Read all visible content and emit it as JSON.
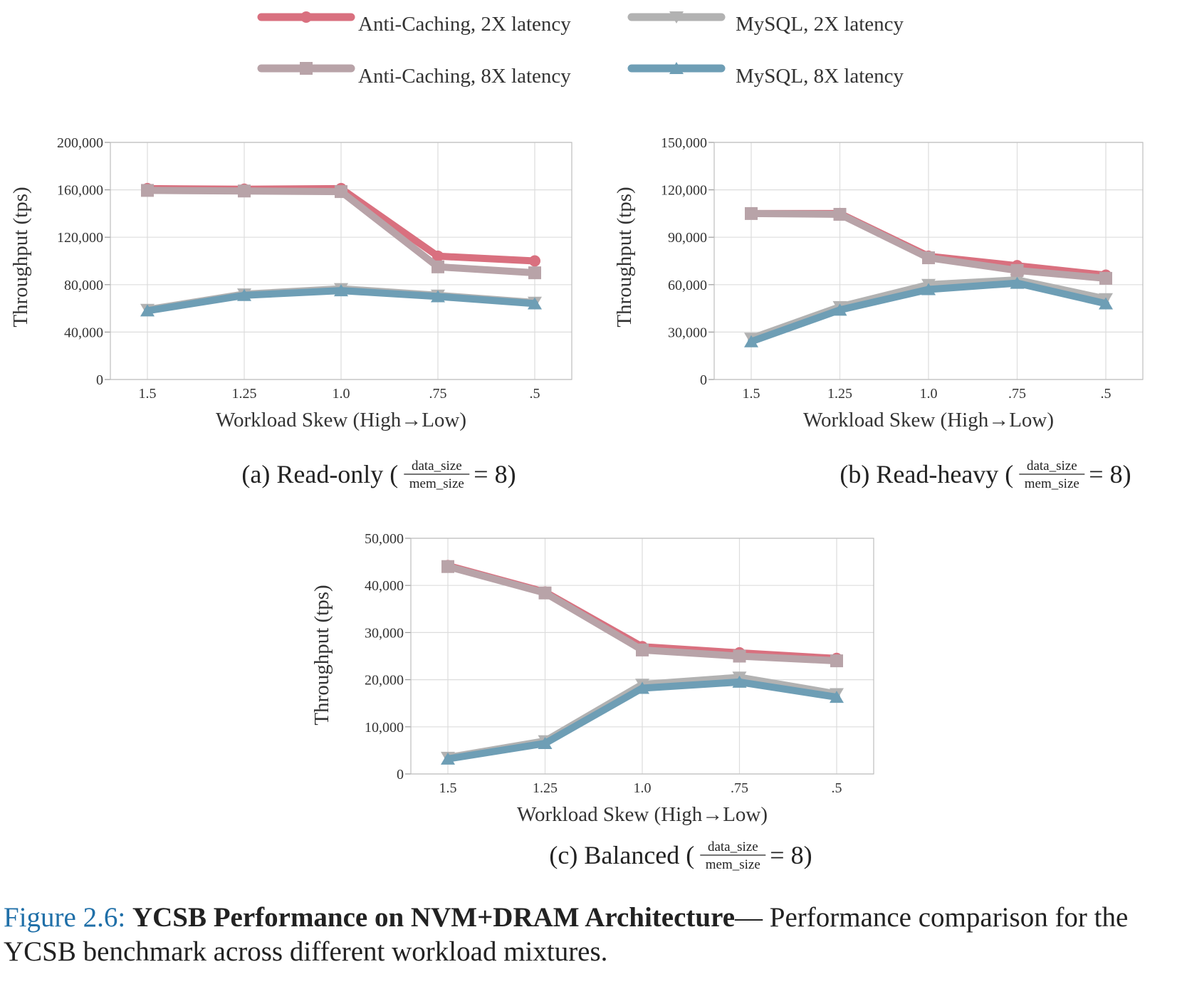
{
  "legend": [
    {
      "label": "Anti-Caching, 2X latency",
      "color": "#d9707f",
      "marker": "circle"
    },
    {
      "label": "MySQL, 2X latency",
      "color": "#b2b2b2",
      "marker": "triangle-down"
    },
    {
      "label": "Anti-Caching, 8X latency",
      "color": "#b8a3a8",
      "marker": "square"
    },
    {
      "label": "MySQL, 8X latency",
      "color": "#6e9eb5",
      "marker": "triangle-up"
    }
  ],
  "chart_data": [
    {
      "type": "line",
      "caption": "(a) Read-only (",
      "caption_num": "data_size",
      "caption_den": "mem_size",
      "caption_end": "= 8)",
      "xlabel": "Workload Skew (High→Low)",
      "ylabel": "Throughput (tps)",
      "categories": [
        "1.5",
        "1.25",
        "1.0",
        ".75",
        ".5"
      ],
      "ylim": [
        0,
        200000
      ],
      "yticks": [
        "0",
        "40,000",
        "80,000",
        "120,000",
        "160,000",
        "200,000"
      ],
      "grid": true,
      "series": [
        {
          "name": "Anti-Caching, 2X latency",
          "values": [
            161000,
            160500,
            161000,
            104000,
            100000
          ]
        },
        {
          "name": "Anti-Caching, 8X latency",
          "values": [
            159500,
            159000,
            158500,
            95000,
            90000
          ]
        },
        {
          "name": "MySQL, 2X latency",
          "values": [
            59000,
            72000,
            76500,
            71000,
            65000
          ]
        },
        {
          "name": "MySQL, 8X latency",
          "values": [
            58000,
            71000,
            75000,
            70000,
            64000
          ]
        }
      ]
    },
    {
      "type": "line",
      "caption": "(b) Read-heavy (",
      "caption_num": "data_size",
      "caption_den": "mem_size",
      "caption_end": "= 8)",
      "xlabel": "Workload Skew (High→Low)",
      "ylabel": "Throughput (tps)",
      "categories": [
        "1.5",
        "1.25",
        "1.0",
        ".75",
        ".5"
      ],
      "ylim": [
        0,
        150000
      ],
      "yticks": [
        "0",
        "30,000",
        "60,000",
        "90,000",
        "120,000",
        "150,000"
      ],
      "grid": true,
      "series": [
        {
          "name": "Anti-Caching, 2X latency",
          "values": [
            105000,
            105000,
            78000,
            72000,
            66000
          ]
        },
        {
          "name": "Anti-Caching, 8X latency",
          "values": [
            105000,
            104500,
            77000,
            69000,
            64000
          ]
        },
        {
          "name": "MySQL, 2X latency",
          "values": [
            26000,
            46000,
            60000,
            63000,
            51000
          ]
        },
        {
          "name": "MySQL, 8X latency",
          "values": [
            24000,
            44000,
            57000,
            61000,
            48000
          ]
        }
      ]
    },
    {
      "type": "line",
      "caption": "(c) Balanced (",
      "caption_num": "data_size",
      "caption_den": "mem_size",
      "caption_end": "= 8)",
      "xlabel": "Workload Skew (High→Low)",
      "ylabel": "Throughput (tps)",
      "categories": [
        "1.5",
        "1.25",
        "1.0",
        ".75",
        ".5"
      ],
      "ylim": [
        0,
        50000
      ],
      "yticks": [
        "0",
        "10,000",
        "20,000",
        "30,000",
        "40,000",
        "50,000"
      ],
      "grid": true,
      "series": [
        {
          "name": "Anti-Caching, 2X latency",
          "values": [
            44200,
            38600,
            27000,
            25700,
            24500
          ]
        },
        {
          "name": "Anti-Caching, 8X latency",
          "values": [
            44000,
            38400,
            26300,
            25000,
            24000
          ]
        },
        {
          "name": "MySQL, 2X latency",
          "values": [
            3500,
            7000,
            19000,
            20500,
            17000
          ]
        },
        {
          "name": "MySQL, 8X latency",
          "values": [
            3200,
            6500,
            18200,
            19500,
            16300
          ]
        }
      ]
    }
  ],
  "caption": {
    "label": "Figure 2.6:",
    "title": "YCSB Performance on NVM+DRAM Architecture",
    "text": "— Performance comparison for the YCSB benchmark across different workload mixtures."
  }
}
